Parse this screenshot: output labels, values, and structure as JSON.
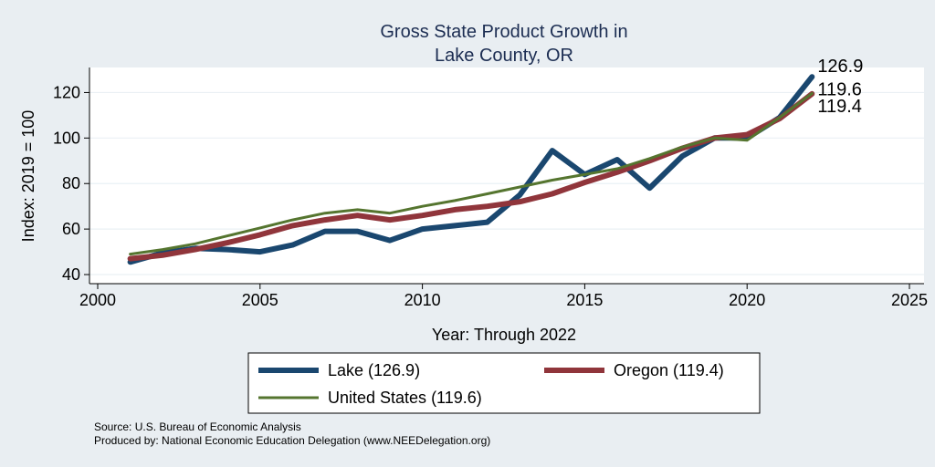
{
  "chart_data": {
    "type": "line",
    "title": "Gross State Product Growth in",
    "subtitle": "Lake County, OR",
    "xlabel": "Year: Through 2022",
    "ylabel": "Index: 2019 = 100",
    "xlim": [
      2000,
      2025
    ],
    "ylim": [
      36,
      131
    ],
    "xticks": [
      2000,
      2005,
      2010,
      2015,
      2020,
      2025
    ],
    "yticks": [
      40,
      60,
      80,
      100,
      120
    ],
    "grid": true,
    "legend_position": "bottom",
    "x": [
      2001,
      2002,
      2003,
      2004,
      2005,
      2006,
      2007,
      2008,
      2009,
      2010,
      2011,
      2012,
      2013,
      2014,
      2015,
      2016,
      2017,
      2018,
      2019,
      2020,
      2021,
      2022
    ],
    "series": [
      {
        "name": "Lake",
        "legend_label": "Lake  (126.9)",
        "end_label": "126.9",
        "color": "#1a476f",
        "values": [
          45.5,
          49.5,
          51.5,
          51.0,
          50.0,
          53.0,
          59.0,
          59.0,
          55.0,
          60.0,
          61.5,
          63.0,
          75.0,
          94.5,
          84.0,
          90.5,
          78.0,
          92.0,
          100.0,
          100.0,
          109.0,
          126.9
        ]
      },
      {
        "name": "Oregon",
        "legend_label": "Oregon (119.4)",
        "end_label": "119.4",
        "color": "#90353b",
        "values": [
          47.0,
          48.5,
          51.0,
          54.0,
          57.5,
          61.5,
          64.0,
          66.0,
          64.0,
          66.0,
          68.5,
          70.0,
          72.0,
          75.5,
          80.5,
          85.0,
          90.0,
          95.5,
          100.0,
          101.5,
          108.5,
          119.4
        ]
      },
      {
        "name": "United States",
        "legend_label": "United States (119.6)",
        "end_label": "119.6",
        "color": "#55752f",
        "values": [
          49.0,
          51.0,
          53.5,
          57.0,
          60.5,
          64.0,
          67.0,
          68.5,
          67.0,
          70.0,
          72.5,
          75.5,
          78.5,
          81.5,
          84.0,
          86.5,
          91.0,
          96.0,
          100.0,
          99.0,
          109.0,
          119.6
        ]
      }
    ]
  },
  "notes": {
    "source": "Source: U.S. Bureau of Economic Analysis",
    "produced_by": "Produced by: National Economic Education Delegation (www.NEEDelegation.org)"
  }
}
